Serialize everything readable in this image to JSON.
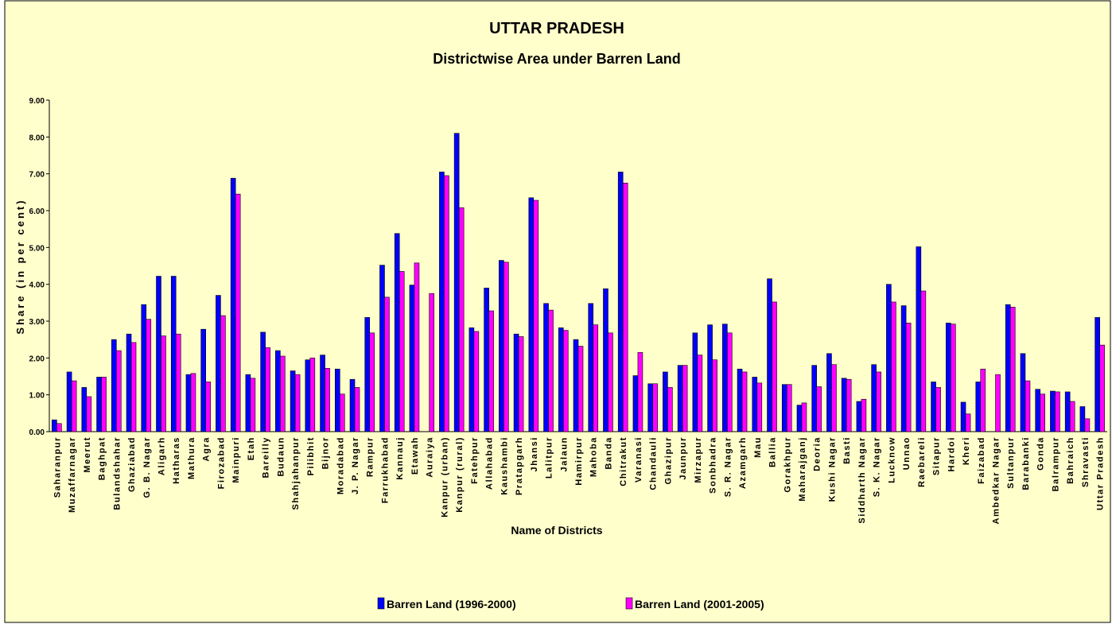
{
  "chart_data": {
    "type": "bar",
    "title": "UTTAR PRADESH",
    "subtitle": "Districtwise Area under Barren Land",
    "y_label": "Share (in per cent)",
    "x_label": "Name of Districts",
    "categories": [
      "Saharanpur",
      "Muzaffarnagar",
      "Meerut",
      "Baghpat",
      "Bulandshahar",
      "Ghaziabad",
      "G. B. Nagar",
      "Aligarh",
      "Hatharas",
      "Mathura",
      "Agra",
      "Firozabad",
      "Mainpuri",
      "Etah",
      "Bareilly",
      "Budaun",
      "Shahjahanpur",
      "Pilibhit",
      "Bijnor",
      "Moradabad",
      "J. P. Nagar",
      "Rampur",
      "Farrukhabad",
      "Kannauj",
      "Etawah",
      "Auraiya",
      "Kanpur (urban)",
      "Kanpur (rural)",
      "Fatehpur",
      "Allahabad",
      "Kaushambi",
      "Pratapgarh",
      "Jhansi",
      "Lalitpur",
      "Jalaun",
      "Hamirpur",
      "Mahoba",
      "Banda",
      "Chitrakut",
      "Varanasi",
      "Chandauli",
      "Ghazipur",
      "Jaunpur",
      "Mirzapur",
      "Sonbhadra",
      "S. R. Nagar",
      "Azamgarh",
      "Mau",
      "Ballia",
      "Gorakhpur",
      "Maharajganj",
      "Deoria",
      "Kushi Nagar",
      "Basti",
      "Siddharth Nagar",
      "S. K. Nagar",
      "Lucknow",
      "Unnao",
      "Raebareli",
      "Sitapur",
      "Hardoi",
      "Kheri",
      "Faizabad",
      "Ambedkar Nagar",
      "Sultanpur",
      "Barabanki",
      "Gonda",
      "Balrampur",
      "Bahraich",
      "Shravasti",
      "Uttar Pradesh"
    ],
    "series": [
      {
        "name": "Barren Land (1996-2000)",
        "color": "#0000ff",
        "values": [
          0.32,
          1.62,
          1.2,
          1.48,
          2.5,
          2.65,
          3.45,
          4.22,
          4.22,
          1.55,
          2.78,
          3.7,
          6.88,
          1.55,
          2.7,
          2.2,
          1.65,
          1.95,
          2.08,
          1.7,
          1.42,
          3.1,
          4.52,
          5.38,
          3.98,
          null,
          7.05,
          8.1,
          2.82,
          3.9,
          4.65,
          2.65,
          6.35,
          3.48,
          2.82,
          2.5,
          3.48,
          3.88,
          7.05,
          1.52,
          1.3,
          1.62,
          1.8,
          2.68,
          2.9,
          2.92,
          1.7,
          1.48,
          4.15,
          1.28,
          0.72,
          1.8,
          2.12,
          1.45,
          0.82,
          1.82,
          4.0,
          3.42,
          5.02,
          1.35,
          2.95,
          0.8,
          1.35,
          null,
          3.45,
          2.12,
          1.15,
          1.1,
          1.08,
          0.68,
          3.1
        ]
      },
      {
        "name": "Barren Land (2001-2005)",
        "color": "#ff00ff",
        "values": [
          0.22,
          1.38,
          0.95,
          1.48,
          2.2,
          2.42,
          3.05,
          2.6,
          2.65,
          1.58,
          1.35,
          3.15,
          6.45,
          1.45,
          2.28,
          2.05,
          1.55,
          2.0,
          1.72,
          1.02,
          1.2,
          2.68,
          3.65,
          4.35,
          4.58,
          3.75,
          6.95,
          6.08,
          2.72,
          3.28,
          4.6,
          2.58,
          6.28,
          3.3,
          2.75,
          2.32,
          2.9,
          2.68,
          6.75,
          2.15,
          1.3,
          1.2,
          1.8,
          2.08,
          1.95,
          2.68,
          1.62,
          1.32,
          3.52,
          1.28,
          0.78,
          1.22,
          1.82,
          1.42,
          0.88,
          1.62,
          3.52,
          2.95,
          3.82,
          1.2,
          2.92,
          0.48,
          1.7,
          1.55,
          3.38,
          1.38,
          1.02,
          1.08,
          0.82,
          0.35,
          2.35
        ]
      }
    ],
    "ylim": [
      0,
      9
    ],
    "yticks": [
      {
        "value": 0,
        "label": "0.00"
      },
      {
        "value": 1,
        "label": "1.00"
      },
      {
        "value": 2,
        "label": "2.00"
      },
      {
        "value": 3,
        "label": "3.00"
      },
      {
        "value": 4,
        "label": "4.00"
      },
      {
        "value": 5,
        "label": "5.00"
      },
      {
        "value": 6,
        "label": "6.00"
      },
      {
        "value": 7,
        "label": "7.00"
      },
      {
        "value": 8,
        "label": "8.00"
      },
      {
        "value": 9,
        "label": "9.00"
      }
    ],
    "grid": false,
    "legend": "bottom"
  }
}
